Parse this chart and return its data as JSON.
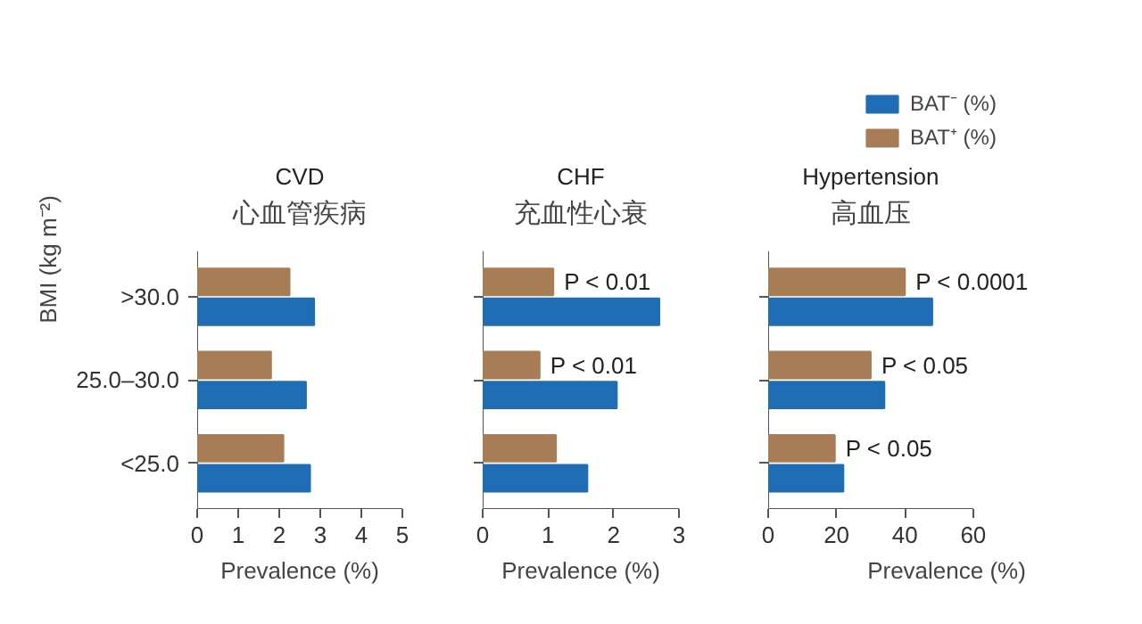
{
  "chart_data": [
    {
      "type": "bar",
      "orientation": "horizontal",
      "title": "CVD",
      "subtitle": "心血管疾病",
      "xlabel": "Prevalence (%)",
      "ylabel": "BMI (kg m⁻²)",
      "categories": [
        ">30.0",
        "25.0–30.0",
        "<25.0"
      ],
      "xlim": [
        0,
        5
      ],
      "xticks": [
        0,
        1,
        2,
        3,
        4,
        5
      ],
      "grid": false,
      "legend": false,
      "series": [
        {
          "color": "#1f6db5",
          "values": [
            2.85,
            2.65,
            2.75
          ]
        },
        {
          "color": "#a87c55",
          "values": [
            2.25,
            1.8,
            2.1
          ]
        }
      ]
    },
    {
      "type": "bar",
      "orientation": "horizontal",
      "title": "CHF",
      "subtitle": "充血性心衰",
      "xlabel": "Prevalence (%)",
      "categories": [
        ">30.0",
        "25.0–30.0",
        "<25.0"
      ],
      "xlim": [
        0,
        3
      ],
      "xticks": [
        0,
        1,
        2,
        3
      ],
      "grid": false,
      "legend": false,
      "tick_labels": "x",
      "series": [
        {
          "color": "#1f6db5",
          "values": [
            2.7,
            2.05,
            1.6
          ]
        },
        {
          "color": "#a87c55",
          "values": [
            1.08,
            0.87,
            1.12
          ]
        }
      ],
      "annotations": [
        {
          "text": "P < 0.01",
          "x": 1.08,
          "y": ">30.0"
        },
        {
          "text": "P < 0.01",
          "x": 0.87,
          "y": "25.0–30.0"
        }
      ]
    },
    {
      "type": "bar",
      "orientation": "horizontal",
      "title": "Hypertension",
      "subtitle": "高血压",
      "xlabel": "Prevalence (%)",
      "categories": [
        ">30.0",
        "25.0–30.0",
        "<25.0"
      ],
      "xlim": [
        0,
        60
      ],
      "xticks": [
        0,
        20,
        40,
        60
      ],
      "grid": false,
      "legend": "top",
      "tick_labels": "x",
      "series": [
        {
          "name": "BAT⁻ (%)",
          "color": "#1f6db5",
          "values": [
            48,
            34,
            22
          ]
        },
        {
          "name": "BAT⁺ (%)",
          "color": "#a87c55",
          "values": [
            40,
            30,
            19.5
          ]
        }
      ],
      "annotations": [
        {
          "text": "P < 0.0001",
          "x": 40,
          "y": ">30.0"
        },
        {
          "text": "P < 0.05",
          "x": 30,
          "y": "25.0–30.0"
        },
        {
          "text": "P < 0.05",
          "x": 19.5,
          "y": "<25.0"
        }
      ]
    }
  ]
}
